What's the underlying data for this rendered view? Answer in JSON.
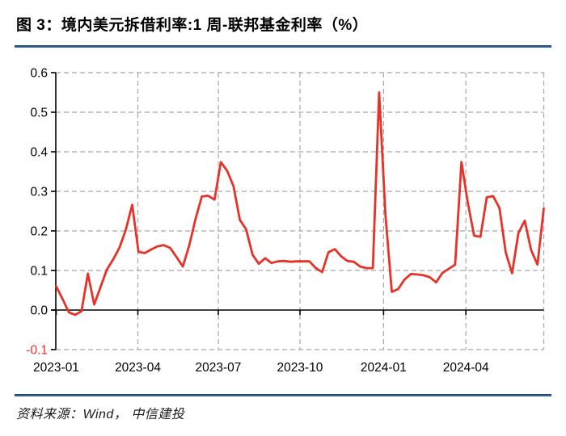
{
  "figure": {
    "title": "图 3：境内美元拆借利率:1 周-联邦基金利率（%）",
    "source_note": "资料来源：Wind， 中信建投"
  },
  "colors": {
    "line": "#e73228",
    "negative_tick_label": "#e73228",
    "axis": "#000000",
    "grid": "#a8a8a8",
    "divider_blue": "#2a608e",
    "text": "#000000"
  },
  "chart_data": {
    "type": "line",
    "title": "境内美元拆借利率:1 周-联邦基金利率（%）",
    "frequency": "weekly",
    "xlabel": "",
    "ylabel": "",
    "ylim": [
      -0.1,
      0.6
    ],
    "grid": "dashed, horizontal and vertical",
    "legend": "none",
    "y_ticks": [
      {
        "label": "0.6",
        "value": 0.6
      },
      {
        "label": "0.5",
        "value": 0.5
      },
      {
        "label": "0.4",
        "value": 0.4
      },
      {
        "label": "0.3",
        "value": 0.3
      },
      {
        "label": "0.2",
        "value": 0.2
      },
      {
        "label": "0.1",
        "value": 0.1
      },
      {
        "label": "0.0",
        "value": 0.0
      },
      {
        "label": "-0.1",
        "value": -0.1
      }
    ],
    "x_ticks": [
      {
        "label": "2023-01",
        "pos": 0
      },
      {
        "label": "2023-04",
        "pos": 12.9
      },
      {
        "label": "2023-07",
        "pos": 25.6
      },
      {
        "label": "2023-10",
        "pos": 38.5
      },
      {
        "label": "2024-01",
        "pos": 51.7
      },
      {
        "label": "2024-04",
        "pos": 64.7
      }
    ],
    "values": [
      0.06,
      0.028,
      -0.006,
      -0.012,
      -0.003,
      0.092,
      0.014,
      0.058,
      0.102,
      0.128,
      0.158,
      0.203,
      0.266,
      0.147,
      0.144,
      0.153,
      0.161,
      0.164,
      0.157,
      0.134,
      0.11,
      0.163,
      0.23,
      0.287,
      0.289,
      0.279,
      0.374,
      0.352,
      0.313,
      0.228,
      0.204,
      0.14,
      0.117,
      0.131,
      0.119,
      0.123,
      0.124,
      0.122,
      0.123,
      0.123,
      0.123,
      0.106,
      0.096,
      0.146,
      0.154,
      0.136,
      0.124,
      0.122,
      0.11,
      0.106,
      0.106,
      0.55,
      0.24,
      0.046,
      0.053,
      0.077,
      0.091,
      0.09,
      0.088,
      0.083,
      0.07,
      0.094,
      0.104,
      0.115,
      0.374,
      0.272,
      0.188,
      0.185,
      0.285,
      0.288,
      0.258,
      0.145,
      0.093,
      0.195,
      0.226,
      0.152,
      0.115,
      0.257
    ]
  }
}
